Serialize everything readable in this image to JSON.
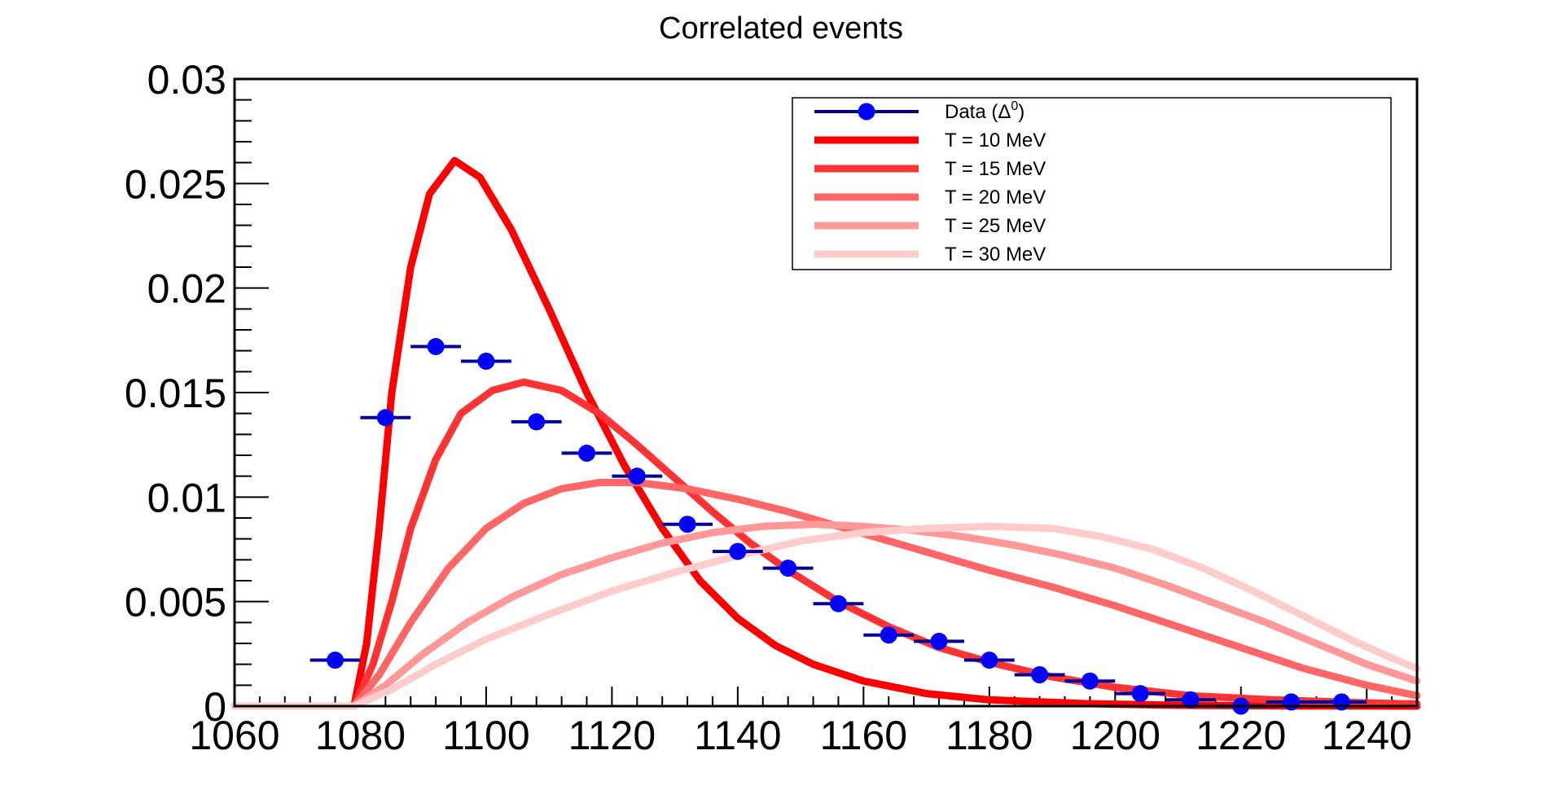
{
  "chart_data": {
    "type": "line",
    "title": "Correlated events",
    "xlabel": "",
    "ylabel": "",
    "xlim": [
      1060,
      1248
    ],
    "ylim": [
      0,
      0.03
    ],
    "xticks": [
      "1060",
      "1080",
      "1100",
      "1120",
      "1140",
      "1160",
      "1180",
      "1200",
      "1220",
      "1240"
    ],
    "yticks": [
      "0",
      "0.005",
      "0.01",
      "0.015",
      "0.02",
      "0.025",
      "0.03"
    ],
    "grid": false,
    "legend_position": "top-right",
    "data_series": {
      "name": "Data (Δ",
      "name_superscript": "0",
      "color": "#0000ff",
      "bar_color": "#000099",
      "bin_halfwidth": 4,
      "points": [
        {
          "x": 1076,
          "y": 0.0022
        },
        {
          "x": 1084,
          "y": 0.0138
        },
        {
          "x": 1092,
          "y": 0.0172
        },
        {
          "x": 1100,
          "y": 0.0165
        },
        {
          "x": 1108,
          "y": 0.0136
        },
        {
          "x": 1116,
          "y": 0.0121
        },
        {
          "x": 1124,
          "y": 0.011
        },
        {
          "x": 1132,
          "y": 0.0087
        },
        {
          "x": 1140,
          "y": 0.0074
        },
        {
          "x": 1148,
          "y": 0.0066
        },
        {
          "x": 1156,
          "y": 0.0049
        },
        {
          "x": 1164,
          "y": 0.0034
        },
        {
          "x": 1172,
          "y": 0.0031
        },
        {
          "x": 1180,
          "y": 0.0022
        },
        {
          "x": 1188,
          "y": 0.0015
        },
        {
          "x": 1196,
          "y": 0.0012
        },
        {
          "x": 1204,
          "y": 0.0006
        },
        {
          "x": 1212,
          "y": 0.0003
        },
        {
          "x": 1220,
          "y": 0.0
        },
        {
          "x": 1228,
          "y": 0.0002
        },
        {
          "x": 1236,
          "y": 0.0002
        }
      ]
    },
    "series": [
      {
        "name": "T = 10 MeV",
        "color": "#ff0000",
        "points": [
          [
            1060,
            0
          ],
          [
            1079,
            0
          ],
          [
            1081,
            0.003
          ],
          [
            1083,
            0.0085
          ],
          [
            1085,
            0.015
          ],
          [
            1088,
            0.021
          ],
          [
            1091,
            0.0245
          ],
          [
            1095,
            0.0261
          ],
          [
            1099,
            0.0253
          ],
          [
            1104,
            0.0228
          ],
          [
            1110,
            0.019
          ],
          [
            1116,
            0.015
          ],
          [
            1122,
            0.0115
          ],
          [
            1128,
            0.0085
          ],
          [
            1134,
            0.006
          ],
          [
            1140,
            0.0042
          ],
          [
            1146,
            0.0029
          ],
          [
            1152,
            0.002
          ],
          [
            1160,
            0.0012
          ],
          [
            1170,
            0.0006
          ],
          [
            1180,
            0.0003
          ],
          [
            1195,
            0.00012
          ],
          [
            1210,
            4e-05
          ],
          [
            1230,
            1e-05
          ],
          [
            1248,
            0
          ]
        ]
      },
      {
        "name": "T = 15 MeV",
        "color": "#ff3333",
        "points": [
          [
            1060,
            0
          ],
          [
            1079,
            0
          ],
          [
            1082,
            0.002
          ],
          [
            1085,
            0.005
          ],
          [
            1088,
            0.0085
          ],
          [
            1092,
            0.0118
          ],
          [
            1096,
            0.014
          ],
          [
            1101,
            0.0151
          ],
          [
            1106,
            0.0155
          ],
          [
            1112,
            0.0151
          ],
          [
            1118,
            0.014
          ],
          [
            1124,
            0.0125
          ],
          [
            1130,
            0.0109
          ],
          [
            1136,
            0.0093
          ],
          [
            1142,
            0.0078
          ],
          [
            1148,
            0.0065
          ],
          [
            1156,
            0.005
          ],
          [
            1164,
            0.0038
          ],
          [
            1172,
            0.0028
          ],
          [
            1180,
            0.0021
          ],
          [
            1190,
            0.0014
          ],
          [
            1200,
            0.0009
          ],
          [
            1212,
            0.0005
          ],
          [
            1225,
            0.0003
          ],
          [
            1240,
            0.00015
          ],
          [
            1248,
            0.0001
          ]
        ]
      },
      {
        "name": "T = 20 MeV",
        "color": "#ff6666",
        "points": [
          [
            1060,
            0
          ],
          [
            1079,
            0
          ],
          [
            1083,
            0.0015
          ],
          [
            1088,
            0.004
          ],
          [
            1094,
            0.0066
          ],
          [
            1100,
            0.0085
          ],
          [
            1106,
            0.0097
          ],
          [
            1112,
            0.0104
          ],
          [
            1118,
            0.0107
          ],
          [
            1124,
            0.0107
          ],
          [
            1132,
            0.0104
          ],
          [
            1140,
            0.0099
          ],
          [
            1148,
            0.0093
          ],
          [
            1156,
            0.0086
          ],
          [
            1164,
            0.0079
          ],
          [
            1172,
            0.0072
          ],
          [
            1180,
            0.0065
          ],
          [
            1190,
            0.0057
          ],
          [
            1200,
            0.0048
          ],
          [
            1210,
            0.0038
          ],
          [
            1220,
            0.0028
          ],
          [
            1230,
            0.0018
          ],
          [
            1240,
            0.001
          ],
          [
            1248,
            0.0005
          ]
        ]
      },
      {
        "name": "T = 25 MeV",
        "color": "#ff9999",
        "points": [
          [
            1060,
            0
          ],
          [
            1079,
            0
          ],
          [
            1084,
            0.001
          ],
          [
            1090,
            0.0025
          ],
          [
            1097,
            0.004
          ],
          [
            1104,
            0.0052
          ],
          [
            1112,
            0.0063
          ],
          [
            1120,
            0.0071
          ],
          [
            1128,
            0.0078
          ],
          [
            1136,
            0.0083
          ],
          [
            1144,
            0.0086
          ],
          [
            1152,
            0.0087
          ],
          [
            1160,
            0.0086
          ],
          [
            1168,
            0.0084
          ],
          [
            1176,
            0.0081
          ],
          [
            1184,
            0.0077
          ],
          [
            1192,
            0.0072
          ],
          [
            1200,
            0.0066
          ],
          [
            1208,
            0.0058
          ],
          [
            1216,
            0.0049
          ],
          [
            1224,
            0.004
          ],
          [
            1232,
            0.003
          ],
          [
            1240,
            0.002
          ],
          [
            1248,
            0.0012
          ]
        ]
      },
      {
        "name": "T = 30 MeV",
        "color": "#ffcccc",
        "points": [
          [
            1060,
            0
          ],
          [
            1079,
            0
          ],
          [
            1085,
            0.0008
          ],
          [
            1092,
            0.002
          ],
          [
            1100,
            0.0032
          ],
          [
            1110,
            0.0044
          ],
          [
            1120,
            0.0055
          ],
          [
            1130,
            0.0064
          ],
          [
            1140,
            0.0072
          ],
          [
            1150,
            0.0079
          ],
          [
            1160,
            0.0083
          ],
          [
            1170,
            0.0085
          ],
          [
            1180,
            0.0086
          ],
          [
            1190,
            0.0085
          ],
          [
            1198,
            0.0081
          ],
          [
            1206,
            0.0075
          ],
          [
            1214,
            0.0066
          ],
          [
            1222,
            0.0055
          ],
          [
            1230,
            0.0043
          ],
          [
            1238,
            0.0031
          ],
          [
            1244,
            0.0023
          ],
          [
            1248,
            0.0018
          ]
        ]
      }
    ]
  }
}
